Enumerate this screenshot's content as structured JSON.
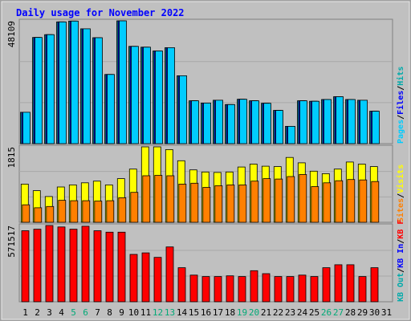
{
  "chart_data": {
    "type": "bar",
    "title": "Daily usage for November 2022",
    "days": [
      "1",
      "2",
      "3",
      "4",
      "5",
      "6",
      "7",
      "8",
      "9",
      "10",
      "11",
      "12",
      "13",
      "14",
      "15",
      "16",
      "17",
      "18",
      "19",
      "20",
      "21",
      "22",
      "23",
      "24",
      "25",
      "26",
      "27",
      "28",
      "29",
      "30",
      "31"
    ],
    "weekend_days": [
      "5",
      "6",
      "12",
      "13",
      "19",
      "20",
      "26",
      "27"
    ],
    "colors": {
      "frame_bg": "#c0c0c0",
      "title": "#0000ff",
      "hits": "#00ccff",
      "files": "#0000ff",
      "pages": "#00aaaa",
      "visits": "#ffff00",
      "sites": "#ff8000",
      "kbf": "#ff0000",
      "kbin": "#0000ff",
      "kbout": "#00aaaa",
      "weekend": "#00aa77"
    },
    "panels": [
      {
        "id": "top",
        "max_label": "48109",
        "legend": [
          {
            "label": "Hits",
            "color": "#00aaaa"
          },
          {
            "label": "/",
            "color": "#000000"
          },
          {
            "label": "Files",
            "color": "#0000ff"
          },
          {
            "label": "/",
            "color": "#000000"
          },
          {
            "label": "Pages",
            "color": "#00ccff"
          }
        ],
        "series": [
          {
            "name": "Hits",
            "color": "#00aaaa",
            "values": [
              12300,
              41600,
              42700,
              47700,
              48000,
              45000,
              41500,
              27100,
              48100,
              38100,
              37800,
              36300,
              37600,
              26600,
              16800,
              15900,
              17000,
              15300,
              17400,
              16800,
              15800,
              13000,
              6800,
              16800,
              16600,
              17300,
              18400,
              17300,
              17000,
              12700
            ]
          },
          {
            "name": "Files",
            "color": "#0000ff",
            "values": [
              12300,
              41600,
              42700,
              47700,
              48000,
              45000,
              41500,
              27100,
              48100,
              38100,
              37800,
              36300,
              37600,
              26600,
              16800,
              15900,
              17000,
              15300,
              17400,
              16800,
              15800,
              13000,
              6800,
              16800,
              16600,
              17300,
              18400,
              17300,
              17000,
              12700
            ]
          },
          {
            "name": "Pages",
            "color": "#00ccff",
            "values": [
              12300,
              41600,
              42700,
              47700,
              48000,
              45000,
              41500,
              27100,
              48100,
              38100,
              37800,
              36300,
              37600,
              26600,
              16800,
              15900,
              17000,
              15300,
              17400,
              16800,
              15800,
              13000,
              6800,
              16800,
              16600,
              17300,
              18400,
              17300,
              17000,
              12700
            ]
          }
        ]
      },
      {
        "id": "middle",
        "max_label": "1815",
        "legend": [
          {
            "label": "Visits",
            "color": "#ffff00"
          },
          {
            "label": "/",
            "color": "#000000"
          },
          {
            "label": "Sites",
            "color": "#ff8000"
          }
        ],
        "series": [
          {
            "name": "Visits",
            "color": "#ffff00",
            "values": [
              920,
              760,
              620,
              850,
              900,
              950,
              990,
              900,
              1050,
              1280,
              1815,
              1815,
              1750,
              1480,
              1260,
              1210,
              1200,
              1210,
              1330,
              1400,
              1350,
              1340,
              1560,
              1430,
              1230,
              1170,
              1280,
              1450,
              1400,
              1340
            ]
          },
          {
            "name": "Sites",
            "color": "#ff8000",
            "values": [
              420,
              350,
              380,
              530,
              520,
              520,
              510,
              520,
              590,
              720,
              1120,
              1130,
              1120,
              920,
              940,
              840,
              880,
              900,
              900,
              990,
              1050,
              1040,
              1100,
              1150,
              860,
              950,
              1000,
              1030,
              1020,
              980
            ]
          }
        ]
      },
      {
        "id": "bottom",
        "max_label": "571517",
        "legend": [
          {
            "label": "KB F",
            "color": "#ff0000"
          },
          {
            "label": "/",
            "color": "#000000"
          },
          {
            "label": "KB In",
            "color": "#0000ff"
          },
          {
            "label": "/",
            "color": "#000000"
          },
          {
            "label": "KB Out",
            "color": "#00aaaa"
          }
        ],
        "series": [
          {
            "name": "KB F",
            "color": "#ff0000",
            "values": [
              480000,
              490000,
              515000,
              505000,
              490000,
              510000,
              480000,
              470000,
              470000,
              320000,
              330000,
              300000,
              370000,
              230000,
              180000,
              170000,
              170000,
              175000,
              170000,
              210000,
              190000,
              170000,
              170000,
              180000,
              170000,
              230000,
              250000,
              250000,
              170000,
              230000
            ]
          }
        ]
      }
    ]
  }
}
